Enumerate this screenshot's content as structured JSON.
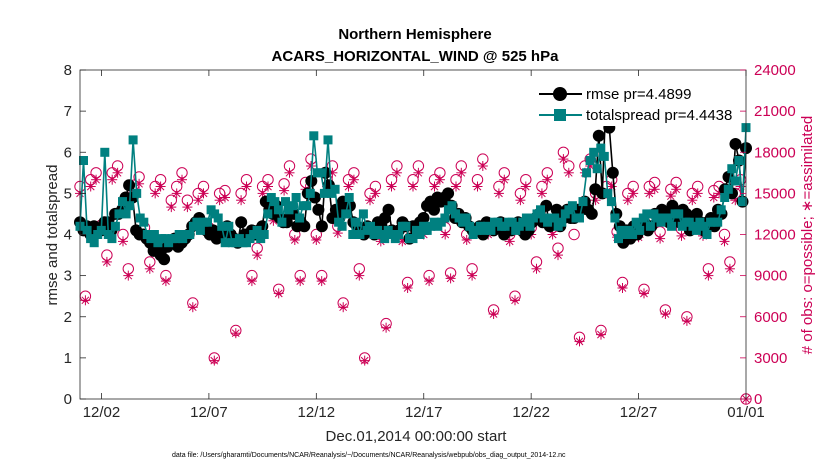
{
  "chart_data": {
    "type": "line",
    "title": "Northern Hemisphere",
    "subtitle": "ACARS_HORIZONTAL_WIND @ 525 hPa",
    "xlabel": "Dec.01,2014 00:00:00 start",
    "ylabel_left": "rmse and totalspread",
    "ylabel_right": "# of obs: o=possible; ∗=assimilated",
    "footnote": "data file: /Users/gharamti/Documents/NCAR/Reanalysis/~/Documents/NCAR/Reanalysis/webpub/obs_diag_output_2014-12.nc",
    "xlim": [
      1,
      32
    ],
    "ylim_left": [
      0,
      8
    ],
    "ylim_right": [
      0,
      24000
    ],
    "x_ticks": [
      2,
      7,
      12,
      17,
      22,
      27,
      32
    ],
    "x_tick_labels": [
      "12/02",
      "12/07",
      "12/12",
      "12/17",
      "12/22",
      "12/27",
      "01/01"
    ],
    "y_ticks_left": [
      "0",
      "1",
      "2",
      "3",
      "4",
      "5",
      "6",
      "7",
      "8"
    ],
    "y_ticks_right": [
      "0",
      "3000",
      "6000",
      "9000",
      "12000",
      "15000",
      "18000",
      "21000",
      "24000"
    ],
    "grid": false,
    "legend_position": "top-right",
    "colors": {
      "rmse": "#000000",
      "totalspread": "#008080",
      "obs": "#cc0055",
      "axis": "#262626"
    },
    "series": [
      {
        "name": "rmse pr=4.4899",
        "marker": "circle",
        "values": [
          4.3,
          4.1,
          4.2,
          4.0,
          4.2,
          4.1,
          4.1,
          4.3,
          4.3,
          4.1,
          4.5,
          4.5,
          4.6,
          4.9,
          5.2,
          4.9,
          4.1,
          4.0,
          4.0,
          3.9,
          3.8,
          3.6,
          3.7,
          3.5,
          3.4,
          3.7,
          3.8,
          3.9,
          3.7,
          3.8,
          3.9,
          4.0,
          4.2,
          4.3,
          4.4,
          4.2,
          4.1,
          4.0,
          4.1,
          3.9,
          4.0,
          4.1,
          4.2,
          4.0,
          3.9,
          3.8,
          4.3,
          4.0,
          4.0,
          4.1,
          4.0,
          4.1,
          4.2,
          4.8,
          4.6,
          4.5,
          4.7,
          4.4,
          4.3,
          4.3,
          4.5,
          4.5,
          4.2,
          4.3,
          4.2,
          5.0,
          5.3,
          4.9,
          4.6,
          4.2,
          5.5,
          5.2,
          4.4,
          4.6,
          4.4,
          4.8,
          4.6,
          4.7,
          4.3,
          4.2,
          4.1,
          4.0,
          4.2,
          4.1,
          4.0,
          4.3,
          4.2,
          4.4,
          4.6,
          4.1,
          4.0,
          4.1,
          4.3,
          4.2,
          3.9,
          4.2,
          4.1,
          4.3,
          4.4,
          4.7,
          4.8,
          4.6,
          4.9,
          4.8,
          4.9,
          5.0,
          4.7,
          4.4,
          4.5,
          4.3,
          4.4,
          4.2,
          4.1,
          4.1,
          4.2,
          4.0,
          4.3,
          4.2,
          4.1,
          4.2,
          4.3,
          4.0,
          4.2,
          4.1,
          4.2,
          4.3,
          4.1,
          4.0,
          4.1,
          4.3,
          4.4,
          4.5,
          4.3,
          4.7,
          4.2,
          4.3,
          4.6,
          4.2,
          4.4,
          4.6,
          4.4,
          4.4,
          4.6,
          4.6,
          4.8,
          4.6,
          4.5,
          5.1,
          6.4,
          5.0,
          7.2,
          6.6,
          5.5,
          4.5,
          4.2,
          3.8,
          4.1,
          3.9,
          4.2,
          4.0,
          4.2,
          4.3,
          4.1,
          4.2,
          4.5,
          4.4,
          4.6,
          4.5,
          4.3,
          4.7,
          4.5,
          4.3,
          4.6,
          4.5,
          4.1,
          4.3,
          4.5,
          4.3,
          4.1,
          4.3,
          4.4,
          4.2,
          4.6,
          4.5,
          5.1,
          5.4,
          5.0,
          6.2,
          5.8,
          4.8,
          6.1
        ]
      },
      {
        "name": "totalspread pr=4.4438",
        "marker": "square",
        "values": [
          4.2,
          5.8,
          4.1,
          3.9,
          3.8,
          4.0,
          4.1,
          6.0,
          4.0,
          3.9,
          4.2,
          4.5,
          4.8,
          4.5,
          4.7,
          6.3,
          5.0,
          4.4,
          4.3,
          4.0,
          3.9,
          4.0,
          3.8,
          3.9,
          3.9,
          3.8,
          3.9,
          3.9,
          4.0,
          3.9,
          4.0,
          4.0,
          4.2,
          4.3,
          4.1,
          4.3,
          4.3,
          4.6,
          4.5,
          4.4,
          4.2,
          3.8,
          4.2,
          3.8,
          3.8,
          3.9,
          3.8,
          3.8,
          3.9,
          4.0,
          4.1,
          3.9,
          4.0,
          4.5,
          4.9,
          4.8,
          4.6,
          4.3,
          4.8,
          4.6,
          4.7,
          4.9,
          4.4,
          4.7,
          4.7,
          5.0,
          6.4,
          5.5,
          5.5,
          5.0,
          6.3,
          5.0,
          5.1,
          4.3,
          4.2,
          4.5,
          4.9,
          4.0,
          4.3,
          4.0,
          4.5,
          4.1,
          4.2,
          4.0,
          4.1,
          4.0,
          3.9,
          4.1,
          4.0,
          3.9,
          4.0,
          4.2,
          4.2,
          3.9,
          3.9,
          4.1,
          4.0,
          4.2,
          4.1,
          4.2,
          4.3,
          4.2,
          4.3,
          4.4,
          4.6,
          4.7,
          4.5,
          4.4,
          4.3,
          4.4,
          4.2,
          4.0,
          4.1,
          4.2,
          4.1,
          4.2,
          4.1,
          4.3,
          4.3,
          4.2,
          4.2,
          4.3,
          4.3,
          4.1,
          4.2,
          4.3,
          4.4,
          4.2,
          4.4,
          4.5,
          4.6,
          4.4,
          4.3,
          4.4,
          4.4,
          4.2,
          4.3,
          4.5,
          4.6,
          4.7,
          4.4,
          4.4,
          4.8,
          5.5,
          5.8,
          6.0,
          5.6,
          6.1,
          5.9,
          5.0,
          4.8,
          4.4,
          3.9,
          4.1,
          4.0,
          4.1,
          4.0,
          4.3,
          4.1,
          4.4,
          4.5,
          4.2,
          4.5,
          4.4,
          4.3,
          4.4,
          4.4,
          4.2,
          4.5,
          4.5,
          4.2,
          4.3,
          4.3,
          4.2,
          4.1,
          4.3,
          4.2,
          4.0,
          4.3,
          4.3,
          4.3,
          4.6,
          4.9,
          5.1,
          5.6,
          5.3,
          5.8,
          4.8,
          6.6
        ]
      },
      {
        "name": "obs possible",
        "marker": "open-circle",
        "axis": "right",
        "x": [
          1.0,
          1.25,
          1.5,
          1.75,
          2.0,
          2.25,
          2.5,
          2.75,
          3.0,
          3.25,
          3.5,
          3.75,
          4.0,
          4.25,
          4.5,
          4.75,
          5.0,
          5.25,
          5.5,
          5.75,
          6.0,
          6.25,
          6.5,
          6.75,
          7.0,
          7.25,
          7.5,
          7.75,
          8.0,
          8.25,
          8.5,
          8.75,
          9.0,
          9.25,
          9.5,
          9.75,
          10.0,
          10.25,
          10.5,
          10.75,
          11.0,
          11.25,
          11.5,
          11.75,
          12.0,
          12.25,
          12.5,
          12.75,
          13.0,
          13.25,
          13.5,
          13.75,
          14.0,
          14.25,
          14.5,
          14.75,
          15.0,
          15.25,
          15.5,
          15.75,
          16.0,
          16.25,
          16.5,
          16.75,
          17.0,
          17.25,
          17.5,
          17.75,
          18.0,
          18.25,
          18.5,
          18.75,
          19.0,
          19.25,
          19.5,
          19.75,
          20.0,
          20.25,
          20.5,
          20.75,
          21.0,
          21.25,
          21.5,
          21.75,
          22.0,
          22.25,
          22.5,
          22.75,
          23.0,
          23.25,
          23.5,
          23.75,
          24.0,
          24.25,
          24.5,
          24.75,
          25.0,
          25.25,
          25.5,
          25.75,
          26.0,
          26.25,
          26.5,
          26.75,
          27.0,
          27.25,
          27.5,
          27.75,
          28.0,
          28.25,
          28.5,
          28.75,
          29.0,
          29.25,
          29.5,
          29.75,
          30.0,
          30.25,
          30.5,
          30.75,
          31.0,
          31.25,
          31.5,
          31.75,
          32.0
        ],
        "values": [
          15500,
          7500,
          16000,
          16500,
          12700,
          10500,
          16500,
          17000,
          12000,
          9500,
          15600,
          16200,
          12500,
          10000,
          15500,
          16000,
          9000,
          14500,
          15500,
          16500,
          14500,
          7000,
          15000,
          15500,
          12500,
          3000,
          15000,
          15200,
          12000,
          5000,
          15000,
          16000,
          9000,
          11000,
          15500,
          16000,
          13500,
          8000,
          15700,
          17000,
          12000,
          9000,
          15800,
          17500,
          12000,
          9000,
          16000,
          17000,
          12600,
          7000,
          16000,
          16500,
          9500,
          3000,
          15000,
          15500,
          12000,
          5500,
          16000,
          17000,
          12000,
          8500,
          16000,
          17000,
          12500,
          9000,
          16000,
          16500,
          12500,
          9200,
          16000,
          17000,
          12000,
          9500,
          16000,
          17500,
          12500,
          6500,
          15500,
          16500,
          12000,
          7500,
          15000,
          16000,
          12500,
          10000,
          15500,
          16500,
          12500,
          11000,
          18000,
          17000,
          12000,
          4500,
          17000,
          17500,
          15000,
          5000,
          15500,
          16000,
          12200,
          8500,
          15000,
          15500,
          12200,
          8000,
          15500,
          15800,
          12200,
          6500,
          15300,
          15800,
          12400,
          6000,
          15000,
          15500,
          12400,
          9500,
          15200,
          15500,
          12000,
          10000,
          15000,
          16000,
          0
        ]
      },
      {
        "name": "obs assimilated",
        "marker": "asterisk",
        "axis": "right",
        "x": [
          1.0,
          1.25,
          1.5,
          1.75,
          2.0,
          2.25,
          2.5,
          2.75,
          3.0,
          3.25,
          3.5,
          3.75,
          4.0,
          4.25,
          4.5,
          4.75,
          5.0,
          5.25,
          5.5,
          5.75,
          6.0,
          6.25,
          6.5,
          6.75,
          7.0,
          7.25,
          7.5,
          7.75,
          8.0,
          8.25,
          8.5,
          8.75,
          9.0,
          9.25,
          9.5,
          9.75,
          10.0,
          10.25,
          10.5,
          10.75,
          11.0,
          11.25,
          11.5,
          11.75,
          12.0,
          12.25,
          12.5,
          12.75,
          13.0,
          13.25,
          13.5,
          13.75,
          14.0,
          14.25,
          14.5,
          14.75,
          15.0,
          15.25,
          15.5,
          15.75,
          16.0,
          16.25,
          16.5,
          16.75,
          17.0,
          17.25,
          17.5,
          17.75,
          18.0,
          18.25,
          18.5,
          18.75,
          19.0,
          19.25,
          19.5,
          19.75,
          20.0,
          20.25,
          20.5,
          20.75,
          21.0,
          21.25,
          21.5,
          21.75,
          22.0,
          22.25,
          22.5,
          22.75,
          23.0,
          23.25,
          23.5,
          23.75,
          24.0,
          24.25,
          24.5,
          24.75,
          25.0,
          25.25,
          25.5,
          25.75,
          26.0,
          26.25,
          26.5,
          26.75,
          27.0,
          27.25,
          27.5,
          27.75,
          28.0,
          28.25,
          28.5,
          28.75,
          29.0,
          29.25,
          29.5,
          29.75,
          30.0,
          30.25,
          30.5,
          30.75,
          31.0,
          31.25,
          31.5,
          31.75,
          32.0
        ],
        "values": [
          15000,
          7200,
          15500,
          16000,
          12200,
          10000,
          16000,
          16500,
          11500,
          9000,
          15100,
          15700,
          12000,
          9500,
          15000,
          15500,
          8600,
          14000,
          15000,
          16000,
          14000,
          6700,
          14500,
          15000,
          12000,
          2800,
          14500,
          14700,
          11600,
          4800,
          14500,
          15500,
          8600,
          10500,
          15000,
          15500,
          13000,
          7700,
          15200,
          16500,
          11600,
          8600,
          15300,
          17000,
          11600,
          8600,
          15500,
          16500,
          12100,
          6700,
          15500,
          16000,
          9000,
          2800,
          14500,
          15000,
          11500,
          5200,
          15500,
          16500,
          11500,
          8100,
          15500,
          16500,
          12000,
          8600,
          15500,
          16000,
          12000,
          8800,
          15500,
          16500,
          11600,
          9000,
          15500,
          17000,
          12000,
          6200,
          15000,
          16000,
          11500,
          7200,
          14500,
          15500,
          12000,
          9500,
          15000,
          16000,
          12000,
          10500,
          17500,
          16500,
          13500,
          4200,
          16500,
          17000,
          14500,
          4700,
          15000,
          15500,
          11800,
          8100,
          14500,
          15000,
          11800,
          7700,
          15000,
          15300,
          11700,
          6200,
          14800,
          15300,
          11900,
          5700,
          14500,
          15000,
          11900,
          9000,
          14700,
          15000,
          11500,
          9500,
          14500,
          15500,
          0
        ]
      }
    ]
  }
}
